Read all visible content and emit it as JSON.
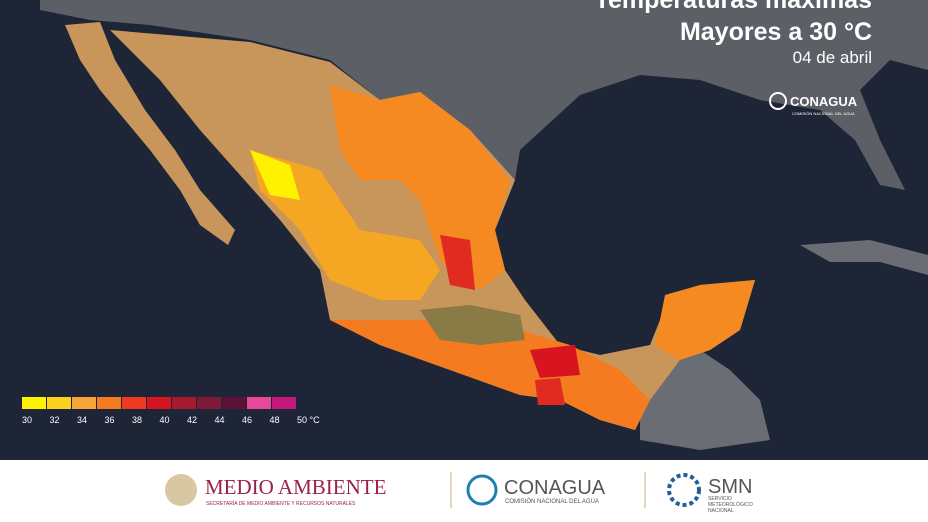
{
  "header": {
    "title": "Temperaturas máximas",
    "subtitle": "Mayores a 30 °C",
    "date": "04 de abril",
    "logo": "CONAGUA",
    "logo_sub": "COMISIÓN NACIONAL DEL AGUA"
  },
  "legend": {
    "colors": [
      "#fff200",
      "#fcd21c",
      "#f7a33a",
      "#f47b20",
      "#ee3a23",
      "#d7141f",
      "#a6192e",
      "#7d1a3a",
      "#5c1136",
      "#e8479a",
      "#c2187b"
    ],
    "ticks": [
      30,
      32,
      34,
      36,
      38,
      40,
      42,
      44,
      46,
      48,
      {
        "value": 50,
        "label": "50 °C"
      }
    ]
  },
  "footer": {
    "semarnat": "MEDIO AMBIENTE",
    "semarnat_sub": "SECRETARÍA DE MEDIO AMBIENTE Y RECURSOS NATURALES",
    "conagua": "CONAGUA",
    "conagua_sub": "COMISIÓN NACIONAL DEL AGUA",
    "smn": "SMN",
    "smn_sub": "SERVICIO METEOROLÓGICO NACIONAL"
  }
}
